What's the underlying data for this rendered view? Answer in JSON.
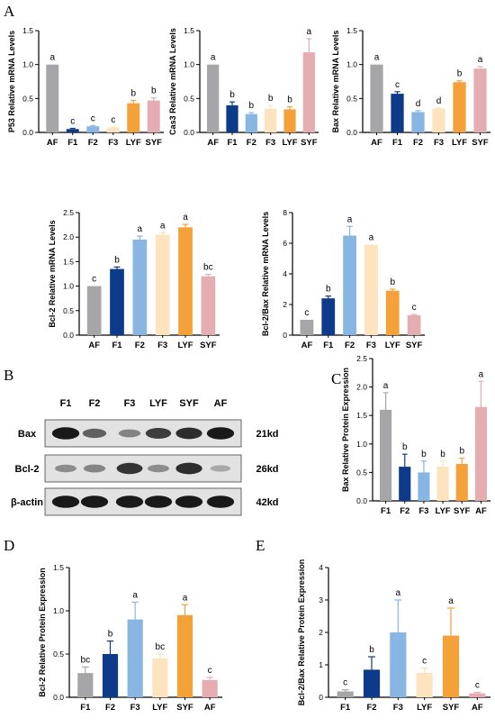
{
  "panel_labels": [
    "A",
    "B",
    "C",
    "D",
    "E"
  ],
  "blot": {
    "lanes": [
      "F1",
      "F2",
      "F3",
      "LYF",
      "SYF",
      "AF"
    ],
    "rows": [
      {
        "name": "Bax",
        "kd": "21kd",
        "intensity": [
          0.95,
          0.55,
          0.35,
          0.75,
          0.85,
          0.95
        ]
      },
      {
        "name": "Bcl-2",
        "kd": "26kd",
        "intensity": [
          0.3,
          0.35,
          0.8,
          0.3,
          0.85,
          0.15
        ]
      },
      {
        "name": "β-actin",
        "kd": "42kd",
        "intensity": [
          0.95,
          0.95,
          0.95,
          0.95,
          0.95,
          0.95
        ]
      }
    ]
  },
  "chart_data": [
    {
      "id": "p53",
      "type": "bar",
      "ylabel": "P53 Relative mRNA Levels",
      "categories": [
        "AF",
        "F1",
        "F2",
        "F3",
        "LYF",
        "SYF"
      ],
      "values": [
        1.0,
        0.05,
        0.09,
        0.07,
        0.43,
        0.47
      ],
      "errors": [
        0.0,
        0.01,
        0.01,
        0.01,
        0.04,
        0.04
      ],
      "letters": [
        "a",
        "c",
        "c",
        "c",
        "b",
        "b"
      ],
      "colors": [
        "#a6a5a8",
        "#0d3b8a",
        "#88b6e3",
        "#fde3be",
        "#f5a13a",
        "#e4adb2"
      ],
      "ylim": [
        0,
        1.5
      ],
      "yticks": [
        "0.0",
        "0.5",
        "1.0",
        "1.5"
      ]
    },
    {
      "id": "cas3",
      "type": "bar",
      "ylabel": "Cas3 Relative mRNA Levels",
      "categories": [
        "AF",
        "F1",
        "F2",
        "F3",
        "LYF",
        "SYF"
      ],
      "values": [
        1.0,
        0.4,
        0.27,
        0.35,
        0.34,
        1.18
      ],
      "errors": [
        0.0,
        0.05,
        0.02,
        0.05,
        0.04,
        0.2
      ],
      "letters": [
        "a",
        "b",
        "b",
        "b",
        "b",
        "a"
      ],
      "colors": [
        "#a6a5a8",
        "#0d3b8a",
        "#88b6e3",
        "#fde3be",
        "#f5a13a",
        "#e4adb2"
      ],
      "ylim": [
        0,
        1.5
      ],
      "yticks": [
        "0.0",
        "0.5",
        "1.0",
        "1.5"
      ]
    },
    {
      "id": "bax",
      "type": "bar",
      "ylabel": "Bax Relative mRNA Levels",
      "categories": [
        "AF",
        "F1",
        "F2",
        "F3",
        "LYF",
        "SYF"
      ],
      "values": [
        1.0,
        0.57,
        0.3,
        0.35,
        0.74,
        0.94
      ],
      "errors": [
        0.0,
        0.03,
        0.02,
        0.01,
        0.02,
        0.03
      ],
      "letters": [
        "a",
        "c",
        "d",
        "d",
        "b",
        "a"
      ],
      "colors": [
        "#a6a5a8",
        "#0d3b8a",
        "#88b6e3",
        "#fde3be",
        "#f5a13a",
        "#e4adb2"
      ],
      "ylim": [
        0,
        1.5
      ],
      "yticks": [
        "0.0",
        "0.5",
        "1.0",
        "1.5"
      ]
    },
    {
      "id": "bcl2_mrna",
      "type": "bar",
      "ylabel": "Bcl-2 Relative mRNA Levels",
      "categories": [
        "AF",
        "F1",
        "F2",
        "F3",
        "LYF",
        "SYF"
      ],
      "values": [
        1.0,
        1.35,
        1.95,
        2.05,
        2.2,
        1.2
      ],
      "errors": [
        0.0,
        0.04,
        0.07,
        0.04,
        0.06,
        0.04
      ],
      "letters": [
        "c",
        "b",
        "a",
        "a",
        "a",
        "bc"
      ],
      "colors": [
        "#a6a5a8",
        "#0d3b8a",
        "#88b6e3",
        "#fde3be",
        "#f5a13a",
        "#e4adb2"
      ],
      "ylim": [
        0,
        2.5
      ],
      "yticks": [
        "0.0",
        "0.5",
        "1.0",
        "1.5",
        "2.0",
        "2.5"
      ]
    },
    {
      "id": "bcl2bax_mrna",
      "type": "bar",
      "ylabel": "Bcl-2/Bax Relative mRNA Levels",
      "categories": [
        "AF",
        "F1",
        "F2",
        "F3",
        "LYF",
        "SYF"
      ],
      "values": [
        1.0,
        2.4,
        6.5,
        5.9,
        2.9,
        1.3
      ],
      "errors": [
        0.0,
        0.15,
        0.6,
        0.0,
        0.1,
        0.05
      ],
      "letters": [
        "c",
        "b",
        "a",
        "a",
        "b",
        "c"
      ],
      "colors": [
        "#a6a5a8",
        "#0d3b8a",
        "#88b6e3",
        "#fde3be",
        "#f5a13a",
        "#e4adb2"
      ],
      "ylim": [
        0,
        8
      ],
      "yticks": [
        "0",
        "2",
        "4",
        "6",
        "8"
      ]
    },
    {
      "id": "bax_protein",
      "type": "bar",
      "ylabel": "Bax Relative Protein Expression",
      "categories": [
        "F1",
        "F2",
        "F3",
        "LYF",
        "SYF",
        "AF"
      ],
      "values": [
        1.6,
        0.6,
        0.5,
        0.6,
        0.65,
        1.65
      ],
      "errors": [
        0.3,
        0.22,
        0.2,
        0.1,
        0.1,
        0.45
      ],
      "letters": [
        "a",
        "b",
        "b",
        "b",
        "b",
        "a"
      ],
      "colors": [
        "#a6a5a8",
        "#0d3b8a",
        "#88b6e3",
        "#fde3be",
        "#f5a13a",
        "#e4adb2"
      ],
      "ylim": [
        0,
        2.5
      ],
      "yticks": [
        "0.0",
        "0.5",
        "1.0",
        "1.5",
        "2.0",
        "2.5"
      ]
    },
    {
      "id": "bcl2_protein",
      "type": "bar",
      "ylabel": "Bcl-2 Relative Protein Expression",
      "categories": [
        "F1",
        "F2",
        "F3",
        "LYF",
        "SYF",
        "AF"
      ],
      "values": [
        0.28,
        0.5,
        0.9,
        0.45,
        0.95,
        0.2
      ],
      "errors": [
        0.07,
        0.15,
        0.2,
        0.05,
        0.12,
        0.03
      ],
      "letters": [
        "bc",
        "b",
        "a",
        "bc",
        "a",
        "c"
      ],
      "colors": [
        "#a6a5a8",
        "#0d3b8a",
        "#88b6e3",
        "#fde3be",
        "#f5a13a",
        "#e4adb2"
      ],
      "ylim": [
        0,
        1.5
      ],
      "yticks": [
        "0.0",
        "0.5",
        "1.0",
        "1.5"
      ]
    },
    {
      "id": "bcl2bax_protein",
      "type": "bar",
      "ylabel": "Bcl-2/Bax Relative Protein Expression",
      "categories": [
        "F1",
        "F2",
        "F3",
        "LYF",
        "SYF",
        "AF"
      ],
      "values": [
        0.18,
        0.85,
        2.0,
        0.75,
        1.9,
        0.12
      ],
      "errors": [
        0.05,
        0.4,
        1.0,
        0.15,
        0.85,
        0.03
      ],
      "letters": [
        "c",
        "b",
        "a",
        "c",
        "a",
        "c"
      ],
      "colors": [
        "#a6a5a8",
        "#0d3b8a",
        "#88b6e3",
        "#fde3be",
        "#f5a13a",
        "#e4adb2"
      ],
      "ylim": [
        0,
        4
      ],
      "yticks": [
        "0",
        "1",
        "2",
        "3",
        "4"
      ]
    }
  ]
}
